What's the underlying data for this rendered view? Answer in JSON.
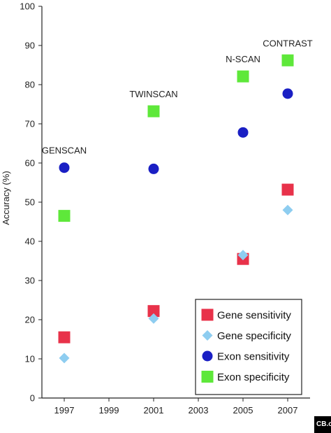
{
  "chart_data": {
    "type": "scatter",
    "ylabel": "Accuracy (%)",
    "xlabel": "",
    "ylim": [
      0,
      100
    ],
    "xlim": [
      1996,
      2008
    ],
    "yticks": [
      0,
      10,
      20,
      30,
      40,
      50,
      60,
      70,
      80,
      90,
      100
    ],
    "xticks": [
      1997,
      1999,
      2001,
      2003,
      2005,
      2007
    ],
    "grid": false,
    "legend_position": "bottom-right",
    "annotations": [
      {
        "text": "GENSCAN",
        "x": 1997
      },
      {
        "text": "TWINSCAN",
        "x": 2001
      },
      {
        "text": "N-SCAN",
        "x": 2005
      },
      {
        "text": "CONTRAST",
        "x": 2007
      }
    ],
    "series": [
      {
        "name": "Gene sensitivity",
        "marker": "square",
        "color": "#e8324a",
        "x": [
          1997,
          2001,
          2005,
          2007
        ],
        "y": [
          15.5,
          22.2,
          35.5,
          53.2
        ]
      },
      {
        "name": "Gene specificity",
        "marker": "diamond",
        "color": "#8ecdf0",
        "x": [
          1997,
          2001,
          2005,
          2007
        ],
        "y": [
          10.2,
          20.3,
          36.5,
          48
        ]
      },
      {
        "name": "Exon sensitivity",
        "marker": "circle",
        "color": "#1a1fc4",
        "x": [
          1997,
          2001,
          2005,
          2007
        ],
        "y": [
          58.8,
          58.5,
          67.8,
          77.7
        ]
      },
      {
        "name": "Exon specificity",
        "marker": "square",
        "color": "#5ee83a",
        "x": [
          1997,
          2001,
          2005,
          2007
        ],
        "y": [
          46.5,
          73.2,
          82.1,
          86.2
        ]
      }
    ]
  },
  "corner_badge": "CB.c"
}
